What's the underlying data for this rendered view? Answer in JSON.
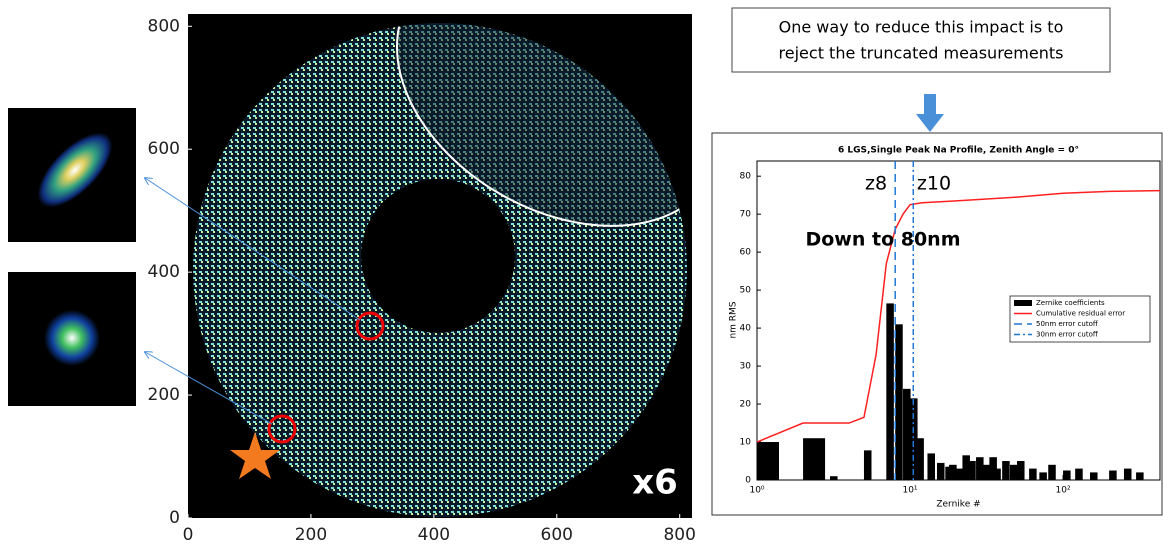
{
  "callout": [
    "One way to reduce this impact is to",
    "reject the truncated measurements"
  ],
  "chart_data": [
    {
      "type": "image",
      "xlim": [
        0,
        820
      ],
      "ylim": [
        0,
        820
      ],
      "xticks": [
        0,
        200,
        400,
        600,
        800
      ],
      "yticks": [
        0,
        200,
        400,
        600,
        800
      ],
      "annotations": [
        "x6"
      ]
    },
    {
      "type": "bar",
      "title": "6 LGS,Single Peak Na Profile, Zenith Angle = 0°",
      "xlabel": "Zernike #",
      "ylabel": "nm RMS",
      "xscale": "log",
      "xlim": [
        1,
        430
      ],
      "ylim": [
        0,
        84
      ],
      "xticks": [
        {
          "value": 1,
          "label": "10⁰"
        },
        {
          "value": 10,
          "label": "10¹"
        },
        {
          "value": 100,
          "label": "10²"
        }
      ],
      "yticks": [
        0,
        10,
        20,
        30,
        40,
        50,
        60,
        70,
        80
      ],
      "series": [
        {
          "name": "Zernike coefficients",
          "type": "bar",
          "color": "#000000",
          "x": [
            1,
            2,
            3,
            5,
            7,
            8,
            9,
            10,
            11,
            13,
            15,
            17,
            18,
            20,
            22,
            24,
            27,
            30,
            33,
            35,
            40,
            45,
            50,
            60,
            70,
            80,
            100,
            120,
            150,
            200,
            250,
            300
          ],
          "values": [
            10,
            11,
            1,
            7.8,
            46.5,
            41,
            24,
            21.5,
            11,
            7,
            4.5,
            3.5,
            4,
            3,
            6.5,
            5,
            6,
            4,
            6,
            3,
            5,
            4,
            5,
            3,
            2,
            4,
            2.5,
            3,
            2,
            2.5,
            3,
            2
          ]
        },
        {
          "name": "Cumulative residual error",
          "type": "line",
          "color": "#ff2020",
          "x": [
            1,
            2,
            3,
            4,
            5,
            6,
            7,
            8,
            9,
            10,
            12,
            20,
            50,
            100,
            200,
            430
          ],
          "values": [
            10,
            15,
            15,
            15,
            16.5,
            33,
            57,
            66,
            70,
            72.5,
            73,
            73.5,
            74.5,
            75.5,
            76,
            76.2
          ]
        }
      ],
      "cutoffs": [
        {
          "name": "50nm error cutoff",
          "color": "#1f77d4",
          "x": 8,
          "dash": "8 5"
        },
        {
          "name": "30nm error cutoff",
          "color": "#1f77d4",
          "x": 10.5,
          "dash": "6 3 2 3"
        }
      ],
      "annotations": [
        "z8",
        "z10",
        "Down to 80nm"
      ]
    }
  ]
}
